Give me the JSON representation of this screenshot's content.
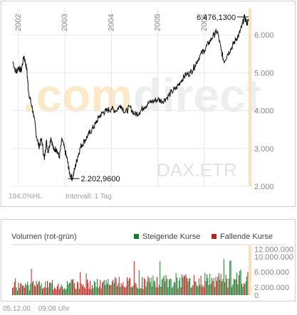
{
  "chart_data": [
    {
      "type": "line",
      "title": "DAX.ETR",
      "watermark": "comdirect",
      "x_ticks": [
        "2002",
        "2003",
        "2004",
        "2005",
        "2006"
      ],
      "y_ticks": [
        "2.000",
        "3.000",
        "4.000",
        "5.000",
        "6.000"
      ],
      "ylim": [
        2000,
        6700
      ],
      "xlim": [
        2001.85,
        2006.95
      ],
      "annotations": {
        "high": "6.476,1300",
        "low": "2.202,9600"
      },
      "footer_left": "194,0%HL",
      "footer_right": "Intervall: 1 Tag",
      "x": [
        2001.88,
        2001.95,
        2002.0,
        2002.06,
        2002.12,
        2002.18,
        2002.22,
        2002.28,
        2002.33,
        2002.38,
        2002.44,
        2002.5,
        2002.56,
        2002.6,
        2002.64,
        2002.7,
        2002.76,
        2002.82,
        2002.88,
        2002.94,
        2003.0,
        2003.06,
        2003.1,
        2003.16,
        2003.22,
        2003.28,
        2003.34,
        2003.42,
        2003.5,
        2003.58,
        2003.66,
        2003.74,
        2003.82,
        2003.9,
        2004.0,
        2004.1,
        2004.2,
        2004.3,
        2004.4,
        2004.5,
        2004.6,
        2004.7,
        2004.8,
        2004.9,
        2005.0,
        2005.1,
        2005.2,
        2005.3,
        2005.4,
        2005.5,
        2005.6,
        2005.7,
        2005.8,
        2005.9,
        2006.0,
        2006.1,
        2006.2,
        2006.28,
        2006.36,
        2006.42,
        2006.5,
        2006.58,
        2006.66,
        2006.74,
        2006.8,
        2006.86,
        2006.92,
        2006.95
      ],
      "y": [
        5300,
        5000,
        5150,
        5050,
        5450,
        5100,
        4500,
        4150,
        3900,
        3400,
        3050,
        3250,
        2700,
        3200,
        2900,
        3300,
        2950,
        3000,
        2750,
        3250,
        2950,
        2650,
        2350,
        2203,
        2500,
        2800,
        3050,
        3200,
        3350,
        3500,
        3650,
        3850,
        3950,
        4000,
        4050,
        4000,
        4150,
        3950,
        4100,
        3900,
        3950,
        4100,
        4200,
        4250,
        4300,
        4250,
        4350,
        4500,
        4600,
        4800,
        4950,
        5000,
        5200,
        5450,
        5600,
        5800,
        6000,
        6100,
        5600,
        5300,
        5500,
        5650,
        5850,
        6000,
        6200,
        6476,
        6300,
        6400
      ]
    },
    {
      "type": "bar",
      "title": "Volumen (rot-grün)",
      "legend": [
        "Steigende Kurse",
        "Fallende Kurse"
      ],
      "colors": {
        "rising": "#1e7a2e",
        "falling": "#c0201a"
      },
      "y_ticks": [
        "0",
        "2.000.000",
        "6.000.000",
        "10.000.000",
        "12.000.000"
      ],
      "ylim": [
        0,
        13000000
      ]
    }
  ],
  "footer": {
    "date": "05.12.06",
    "time": "09:08 Uhr"
  }
}
